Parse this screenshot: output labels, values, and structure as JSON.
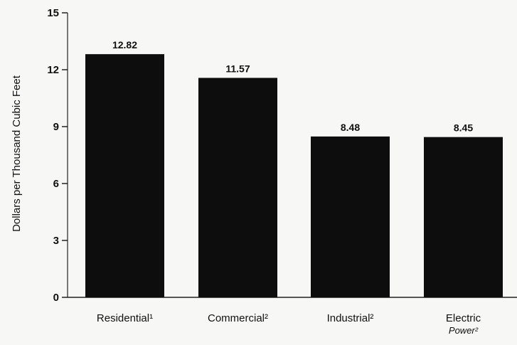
{
  "chart_data": {
    "type": "bar",
    "title": "",
    "xlabel": "",
    "ylabel": "Dollars per Thousand Cubic Feet",
    "ylim": [
      0,
      15
    ],
    "yticks": [
      0,
      3,
      6,
      9,
      12,
      15
    ],
    "grid": false,
    "legend": "none",
    "categories": [
      "Residential",
      "Commercial",
      "Industrial",
      "Electric Power"
    ],
    "category_labels": [
      {
        "line1": "Residential¹",
        "line2": ""
      },
      {
        "line1": "Commercial²",
        "line2": ""
      },
      {
        "line1": "Industrial²",
        "line2": ""
      },
      {
        "line1": "Electric",
        "line2": "Power²"
      }
    ],
    "values": [
      12.82,
      11.57,
      8.48,
      8.45
    ],
    "value_labels": [
      "12.82",
      "11.57",
      "8.48",
      "8.45"
    ],
    "bar_color": "#0d0d0d",
    "axis_color": "#222222"
  }
}
